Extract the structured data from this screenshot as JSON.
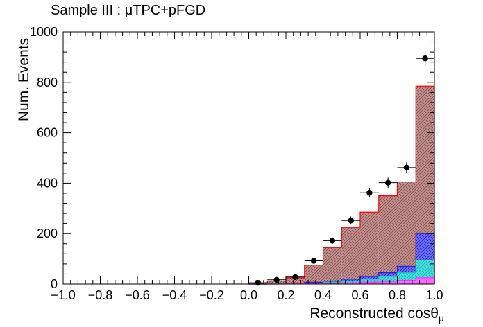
{
  "chart_data": {
    "type": "bar",
    "title": "Sample III : μTPC+pFGD",
    "xlabel": "Reconstructed cosθ",
    "xlabel_sub": "μ",
    "ylabel": "Num. Events",
    "xlim": [
      -1.0,
      1.0
    ],
    "ylim": [
      0,
      1000
    ],
    "x_ticks": [
      "−1.0",
      "−0.8",
      "−0.6",
      "−0.4",
      "−0.2",
      "0.0",
      "0.2",
      "0.4",
      "0.6",
      "0.8",
      "1.0"
    ],
    "y_ticks": [
      "0",
      "200",
      "400",
      "600",
      "800",
      "1000"
    ],
    "bin_edges": [
      0.0,
      0.1,
      0.2,
      0.3,
      0.4,
      0.5,
      0.6,
      0.7,
      0.8,
      0.9,
      1.0
    ],
    "series": [
      {
        "role": "total_mc",
        "values": [
          3,
          12,
          25,
          75,
          145,
          225,
          285,
          350,
          405,
          785
        ]
      },
      {
        "role": "component_blue",
        "values": [
          0,
          1,
          3,
          7,
          12,
          20,
          30,
          45,
          70,
          200
        ]
      },
      {
        "role": "component_cyan",
        "values": [
          0,
          1,
          2,
          4,
          8,
          12,
          20,
          30,
          45,
          95
        ]
      },
      {
        "role": "component_magenta",
        "values": [
          0,
          0,
          1,
          2,
          3,
          5,
          8,
          10,
          15,
          25
        ]
      },
      {
        "role": "data",
        "x": [
          0.05,
          0.15,
          0.25,
          0.35,
          0.45,
          0.55,
          0.65,
          0.75,
          0.85,
          0.95
        ],
        "values": [
          5,
          17,
          28,
          92,
          172,
          252,
          362,
          402,
          462,
          895
        ],
        "errors": [
          2,
          4,
          5,
          10,
          13,
          16,
          19,
          20,
          21,
          30
        ]
      }
    ],
    "colors": {
      "total_fill": "#c08a8a",
      "total_line": "#ff0000",
      "blue": "#3333ff",
      "cyan": "#33dddd",
      "magenta": "#ff33ff",
      "data": "#000000"
    }
  }
}
